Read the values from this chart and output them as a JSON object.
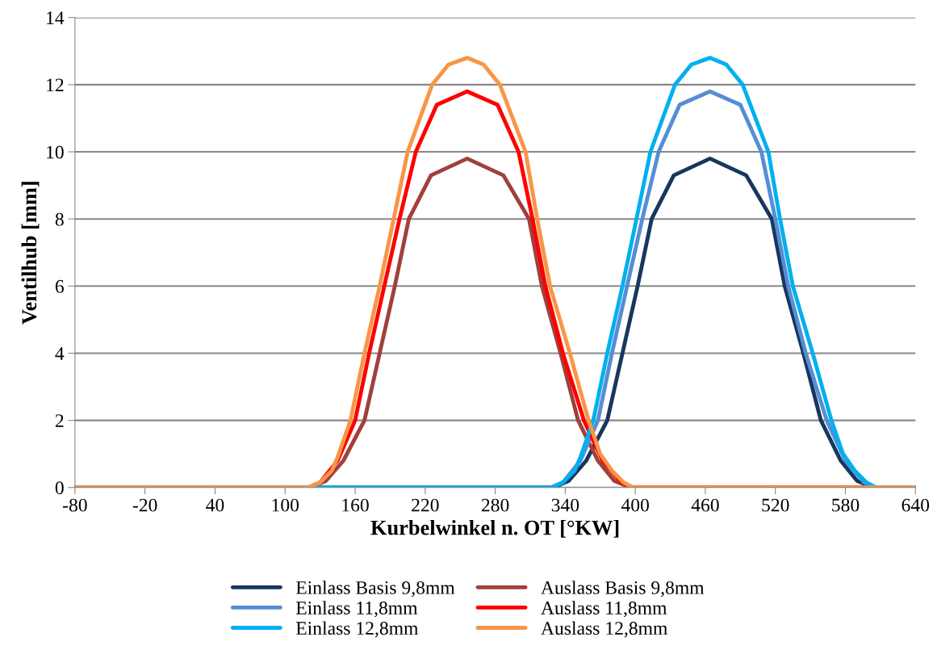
{
  "chart_data": {
    "type": "line",
    "xlabel": "Kurbelwinkel n. OT [°KW]",
    "ylabel": "Ventilhub [mm]",
    "xlim": [
      -80,
      640
    ],
    "xticks": [
      -80,
      -20,
      40,
      100,
      160,
      220,
      280,
      340,
      400,
      460,
      520,
      580,
      640
    ],
    "ylim": [
      0,
      14
    ],
    "yticks": [
      0,
      2,
      4,
      6,
      8,
      10,
      12,
      14
    ],
    "grid": "y",
    "legend": "bottom",
    "marker": "none",
    "line_style": "solid",
    "series": [
      {
        "name": "Einlass Basis 9,8mm",
        "color": "#17375e",
        "x": [
          -80,
          330,
          343,
          358,
          376,
          389,
          402,
          414,
          433,
          464,
          495,
          517,
          528,
          544,
          559,
          576,
          590,
          604,
          640
        ],
        "values": [
          0,
          0,
          0.2,
          0.8,
          2,
          4,
          6,
          8,
          9.3,
          9.8,
          9.3,
          8,
          6,
          4,
          2,
          0.8,
          0.2,
          0,
          0
        ]
      },
      {
        "name": "Auslass Basis 9,8mm",
        "color": "#a0403c",
        "x": [
          -80,
          122,
          135,
          150,
          168,
          181,
          194,
          206,
          225,
          256,
          287,
          309,
          320,
          336,
          351,
          368,
          382,
          396,
          640
        ],
        "values": [
          0,
          0,
          0.2,
          0.8,
          2,
          4,
          6,
          8,
          9.3,
          9.8,
          9.3,
          8,
          6,
          4,
          2,
          0.8,
          0.2,
          0,
          0
        ]
      },
      {
        "name": "Einlass 11,8mm",
        "color": "#558ed5",
        "x": [
          -80,
          328,
          338,
          353,
          368,
          380,
          393,
          406,
          420,
          438,
          464,
          490,
          508,
          520,
          531,
          546,
          564,
          580,
          596,
          606,
          640
        ],
        "values": [
          0,
          0,
          0.15,
          0.8,
          2,
          4,
          6,
          8,
          10,
          11.4,
          11.8,
          11.4,
          10,
          8,
          6,
          4,
          2,
          0.8,
          0.15,
          0,
          0
        ]
      },
      {
        "name": "Auslass 11,8mm",
        "color": "#ff0000",
        "x": [
          -80,
          120,
          130,
          145,
          160,
          172,
          185,
          198,
          212,
          230,
          256,
          282,
          300,
          312,
          323,
          338,
          356,
          372,
          388,
          398,
          640
        ],
        "values": [
          0,
          0,
          0.15,
          0.8,
          2,
          4,
          6,
          8,
          10,
          11.4,
          11.8,
          11.4,
          10,
          8,
          6,
          4,
          2,
          0.8,
          0.15,
          0,
          0
        ]
      },
      {
        "name": "Einlass 12,8mm",
        "color": "#00b0f0",
        "x": [
          -80,
          328,
          338,
          348,
          353,
          364,
          376,
          389,
          401,
          413,
          434,
          448,
          464,
          478,
          492,
          514,
          524,
          535,
          552,
          568,
          578,
          588,
          598,
          606,
          640
        ],
        "values": [
          0,
          0,
          0.15,
          0.5,
          0.9,
          2,
          4,
          6,
          8,
          10,
          12,
          12.6,
          12.8,
          12.6,
          12,
          10,
          8,
          6,
          4,
          2,
          1,
          0.5,
          0.15,
          0,
          0
        ]
      },
      {
        "name": "Auslass 12,8mm",
        "color": "#f79646",
        "x": [
          -80,
          120,
          130,
          140,
          145,
          156,
          168,
          181,
          193,
          205,
          226,
          240,
          256,
          270,
          284,
          306,
          316,
          327,
          344,
          360,
          370,
          380,
          390,
          398,
          640
        ],
        "values": [
          0,
          0,
          0.15,
          0.5,
          0.9,
          2,
          4,
          6,
          8,
          10,
          12,
          12.6,
          12.8,
          12.6,
          12,
          10,
          8,
          6,
          4,
          2,
          1,
          0.5,
          0.15,
          0,
          0
        ]
      }
    ]
  }
}
